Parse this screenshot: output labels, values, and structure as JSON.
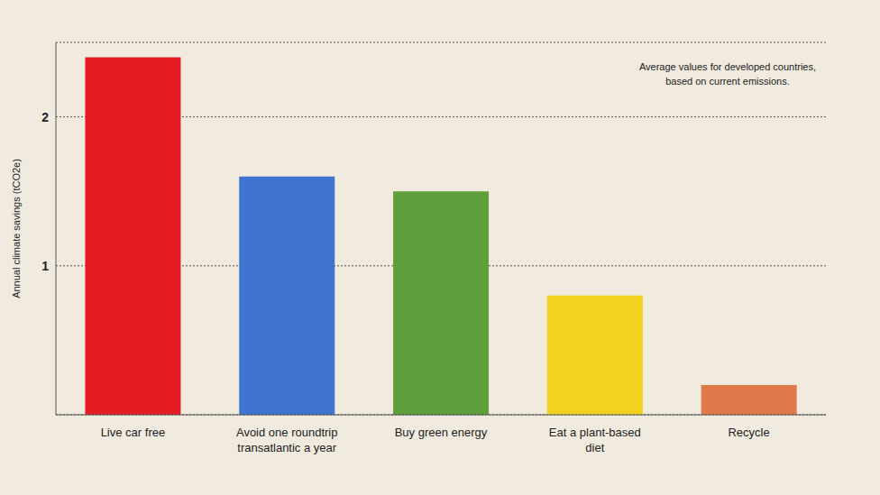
{
  "chart_data": {
    "type": "bar",
    "y_label": "Annual climate savings (tCO2e)",
    "annotation": [
      "Average values for developed countries,",
      "based on current emissions."
    ],
    "categories": [
      "Live car free",
      "Avoid one roundtrip transatlantic a year",
      "Buy green energy",
      "Eat a plant-based diet",
      "Recycle"
    ],
    "values": [
      2.4,
      1.6,
      1.5,
      0.8,
      0.2
    ],
    "colors": [
      "#e31b23",
      "#3f74cf",
      "#5e9e3b",
      "#f2d21f",
      "#e07a4a"
    ],
    "ylim": [
      0,
      2.5
    ],
    "yticks": [
      1,
      2
    ],
    "grid": true
  }
}
